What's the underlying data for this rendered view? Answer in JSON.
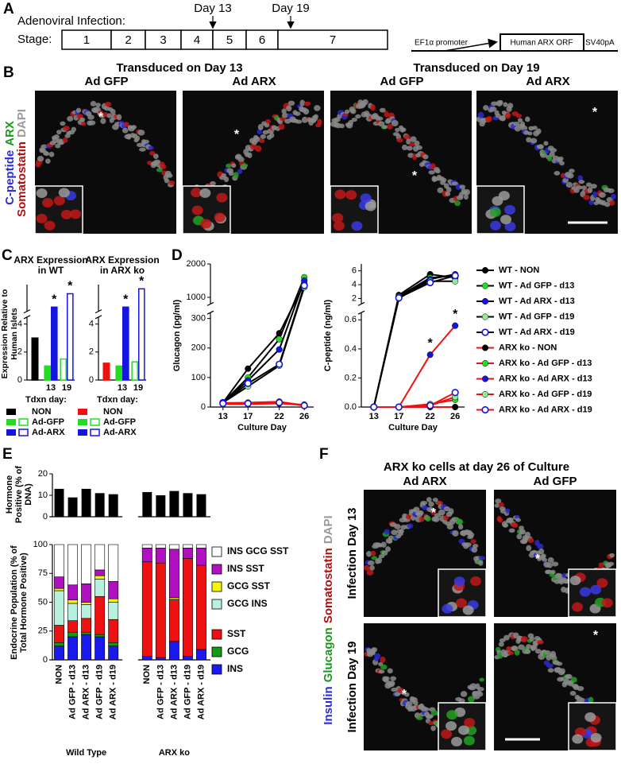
{
  "panel_a": {
    "label": "A",
    "infection_label": "Adenoviral Infection:",
    "stage_label": "Stage:",
    "stages": [
      "1",
      "2",
      "3",
      "4",
      "5",
      "6",
      "7"
    ],
    "days": [
      "Day 13",
      "Day 19"
    ],
    "construct": {
      "promoter": "EF1α promoter",
      "orf": "Human ARX ORF",
      "polya": "SV40pA"
    }
  },
  "panel_b": {
    "label": "B",
    "groups": [
      "Transduced on Day 13",
      "Transduced on Day 19"
    ],
    "columns": [
      "Ad GFP",
      "Ad ARX",
      "Ad GFP",
      "Ad ARX"
    ],
    "stains": [
      {
        "text": "C-peptide",
        "color": "#2b2bd9"
      },
      {
        "text": "ARX",
        "color": "#1a9a1a"
      },
      {
        "text": "Somatostatin",
        "color": "#b01010"
      },
      {
        "text": "DAPI",
        "color": "#9a9a9a"
      }
    ],
    "marker": "*"
  },
  "panel_f": {
    "label": "F",
    "title": "ARX ko cells at day 26 of Culture",
    "columns": [
      "Ad ARX",
      "Ad GFP"
    ],
    "rows": [
      "Infection Day 13",
      "Infection Day 19"
    ],
    "stains": [
      {
        "text": "Insulin",
        "color": "#2b2bd9"
      },
      {
        "text": "Glucagon",
        "color": "#1a9a1a"
      },
      {
        "text": "Somatostatin",
        "color": "#b01010"
      },
      {
        "text": "DAPI",
        "color": "#9a9a9a"
      }
    ],
    "marker": "*"
  },
  "chart_data": [
    {
      "type": "bar",
      "panel": "C",
      "title": "ARX Expression in WT",
      "ylabel": "Expression Relative to Human Islets",
      "xlabel": "Tdxn day:",
      "categories": [
        null,
        "13",
        "19"
      ],
      "hollow": [
        false,
        false,
        true
      ],
      "series": [
        {
          "name": "NON",
          "color": "#000000",
          "values": [
            3,
            null,
            null
          ]
        },
        {
          "name": "Ad-GFP",
          "color": "#22dd22",
          "values": [
            null,
            1,
            1.5
          ]
        },
        {
          "name": "Ad-ARX",
          "color": "#1515e0",
          "values": [
            null,
            40,
            135
          ],
          "annotations": [
            null,
            "*",
            "*"
          ]
        }
      ],
      "ylim": [
        0,
        200
      ],
      "ybreak": [
        4.5,
        10
      ],
      "yticks": [
        0,
        2,
        4
      ]
    },
    {
      "type": "bar",
      "title": "ARX Expression in ARX ko",
      "xlabel": "Tdxn day:",
      "categories": [
        null,
        "13",
        "19"
      ],
      "hollow": [
        false,
        false,
        true
      ],
      "series": [
        {
          "name": "NON",
          "color": "#ee1111",
          "values": [
            1.2,
            null,
            null
          ]
        },
        {
          "name": "Ad-GFP",
          "color": "#22dd22",
          "values": [
            null,
            1,
            1.3
          ]
        },
        {
          "name": "Ad-ARX",
          "color": "#1515e0",
          "values": [
            null,
            40,
            170
          ],
          "annotations": [
            null,
            "*",
            "*"
          ]
        }
      ],
      "ylim": [
        0,
        200
      ],
      "ybreak": [
        4.5,
        10
      ],
      "yticks": [
        0,
        2,
        4
      ]
    },
    {
      "type": "line",
      "panel": "D",
      "ylabel": "Glucagon (pg/ml)",
      "xlabel": "Culture Day",
      "x": [
        13,
        17,
        22,
        26
      ],
      "xlim": [
        11,
        27.5
      ],
      "xticks": [
        13,
        17,
        22,
        26
      ],
      "ylim": [
        0,
        2000
      ],
      "ybreak": [
        320,
        800
      ],
      "yticks": [
        0,
        100,
        200,
        300,
        1000,
        2000
      ],
      "series": [
        {
          "color": "#000000",
          "line_color": "#000000",
          "hollow": false,
          "values": [
            15,
            130,
            250,
            1400
          ]
        },
        {
          "color": "#22dd22",
          "line_color": "#000000",
          "hollow": false,
          "values": [
            15,
            100,
            230,
            1600
          ]
        },
        {
          "color": "#1515e0",
          "line_color": "#000000",
          "hollow": false,
          "values": [
            15,
            90,
            195,
            1500
          ]
        },
        {
          "color": "#90ee90",
          "line_color": "#000000",
          "hollow": false,
          "values": [
            15,
            70,
            140,
            1300
          ]
        },
        {
          "color": "#1515e0",
          "line_color": "#000000",
          "hollow": true,
          "values": [
            15,
            80,
            145,
            1350
          ]
        },
        {
          "color": "#000000",
          "line_color": "#ee1111",
          "hollow": false,
          "values": [
            10,
            10,
            12,
            8
          ]
        },
        {
          "color": "#22dd22",
          "line_color": "#ee1111",
          "hollow": false,
          "values": [
            12,
            15,
            18,
            5
          ]
        },
        {
          "color": "#1515e0",
          "line_color": "#ee1111",
          "hollow": false,
          "values": [
            14,
            14,
            18,
            6
          ]
        },
        {
          "color": "#90ee90",
          "line_color": "#ee1111",
          "hollow": false,
          "values": [
            12,
            12,
            15,
            5
          ]
        },
        {
          "color": "#1515e0",
          "line_color": "#ee1111",
          "hollow": true,
          "values": [
            12,
            12,
            15,
            5
          ]
        }
      ]
    },
    {
      "type": "line",
      "ylabel": "C-peptide (ng/ml)",
      "xlabel": "Culture Day",
      "x": [
        13,
        17,
        22,
        26
      ],
      "xlim": [
        11,
        27.5
      ],
      "xticks": [
        13,
        17,
        22,
        26
      ],
      "ylim": [
        0,
        7
      ],
      "ybreak": [
        0.65,
        1.2
      ],
      "yticks": [
        {
          "value": 0,
          "label": "0.0"
        },
        0.2,
        0.4,
        0.6,
        2,
        4,
        6
      ],
      "series": [
        {
          "name": "WT - NON",
          "color": "#000000",
          "line_color": "#000000",
          "hollow": false,
          "values": [
            0,
            2.5,
            5.5,
            5
          ]
        },
        {
          "name": "WT - Ad GFP - d13",
          "color": "#22dd22",
          "line_color": "#000000",
          "hollow": false,
          "values": [
            0,
            2.3,
            5,
            5.3
          ]
        },
        {
          "name": "WT - Ad ARX - d13",
          "color": "#1515e0",
          "line_color": "#000000",
          "hollow": false,
          "values": [
            0,
            2,
            4.8,
            5.5
          ]
        },
        {
          "name": "WT - Ad GFP - d19",
          "color": "#90ee90",
          "line_color": "#000000",
          "hollow": false,
          "values": [
            0,
            2.2,
            4.5,
            4.5
          ]
        },
        {
          "name": "WT - Ad ARX - d19",
          "color": "#1515e0",
          "line_color": "#000000",
          "hollow": true,
          "values": [
            0,
            2.1,
            4.3,
            5.3
          ]
        },
        {
          "name": "ARX ko - NON",
          "color": "#000000",
          "line_color": "#ee1111",
          "hollow": false,
          "values": [
            0,
            0,
            0,
            0
          ]
        },
        {
          "name": "ARX ko - Ad GFP - d13",
          "color": "#22dd22",
          "line_color": "#ee1111",
          "hollow": false,
          "values": [
            0,
            0,
            0.02,
            0.05
          ]
        },
        {
          "name": "ARX ko - Ad ARX - d13",
          "color": "#1515e0",
          "line_color": "#ee1111",
          "hollow": false,
          "values": [
            0,
            0,
            0.36,
            0.56
          ],
          "annotations": [
            null,
            null,
            "*",
            "*"
          ]
        },
        {
          "name": "ARX ko - Ad GFP - d19",
          "color": "#90ee90",
          "line_color": "#ee1111",
          "hollow": false,
          "values": [
            0,
            0,
            0.01,
            0.07
          ]
        },
        {
          "name": "ARX ko - Ad ARX - d19",
          "color": "#1515e0",
          "line_color": "#ee1111",
          "hollow": true,
          "values": [
            0,
            0,
            0.01,
            0.1
          ]
        }
      ]
    },
    {
      "type": "bar",
      "panel": "E",
      "ylabel": "Hormone Positive (% of DNA)",
      "color": "#000000",
      "values": [
        13,
        9,
        13,
        11,
        10.5,
        11.5,
        10,
        12,
        11,
        10.5
      ],
      "ylim": [
        0,
        20
      ],
      "yticks": [
        0,
        10,
        20
      ]
    },
    {
      "type": "bar",
      "stacked": true,
      "ylabel": "Endocrine Population (% of Total Hormone Positive)",
      "categories": [
        "NON",
        "Ad GFP - d13",
        "Ad ARX - d13",
        "Ad GFP - d19",
        "Ad ARX - d19",
        "NON",
        "Ad GFP - d13",
        "Ad ARX - d13",
        "Ad GFP - d19",
        "Ad ARX - d19"
      ],
      "groups": [
        "Wild Type",
        "ARX ko"
      ],
      "series": [
        {
          "name": "INS",
          "color": "#1a1aee",
          "values": [
            12,
            20,
            22,
            20,
            12,
            3,
            2,
            16,
            3,
            9
          ]
        },
        {
          "name": "GCG",
          "color": "#129a12",
          "values": [
            3,
            4,
            2,
            2,
            3,
            0,
            0,
            0,
            0,
            0
          ]
        },
        {
          "name": "SST",
          "color": "#ee1111",
          "values": [
            15,
            10,
            12,
            33,
            20,
            82,
            82,
            36,
            85,
            73
          ]
        },
        {
          "name": "GCG INS",
          "color": "#b8f0e0",
          "values": [
            30,
            15,
            12,
            15,
            15,
            0,
            0,
            1,
            0,
            0
          ]
        },
        {
          "name": "GCG SST",
          "color": "#f5f50a",
          "values": [
            2,
            3,
            2,
            3,
            3,
            0,
            0,
            1,
            0,
            0
          ]
        },
        {
          "name": "INS SST",
          "color": "#b010c0",
          "values": [
            10,
            13,
            16,
            5,
            15,
            12,
            13,
            42,
            9,
            15
          ]
        },
        {
          "name": "INS GCG SST",
          "color": "#ffffff",
          "values": [
            28,
            35,
            34,
            22,
            32,
            3,
            3,
            4,
            3,
            3
          ]
        }
      ],
      "ylim": [
        0,
        100
      ],
      "yticks": [
        0,
        25,
        50,
        75,
        100
      ]
    }
  ]
}
